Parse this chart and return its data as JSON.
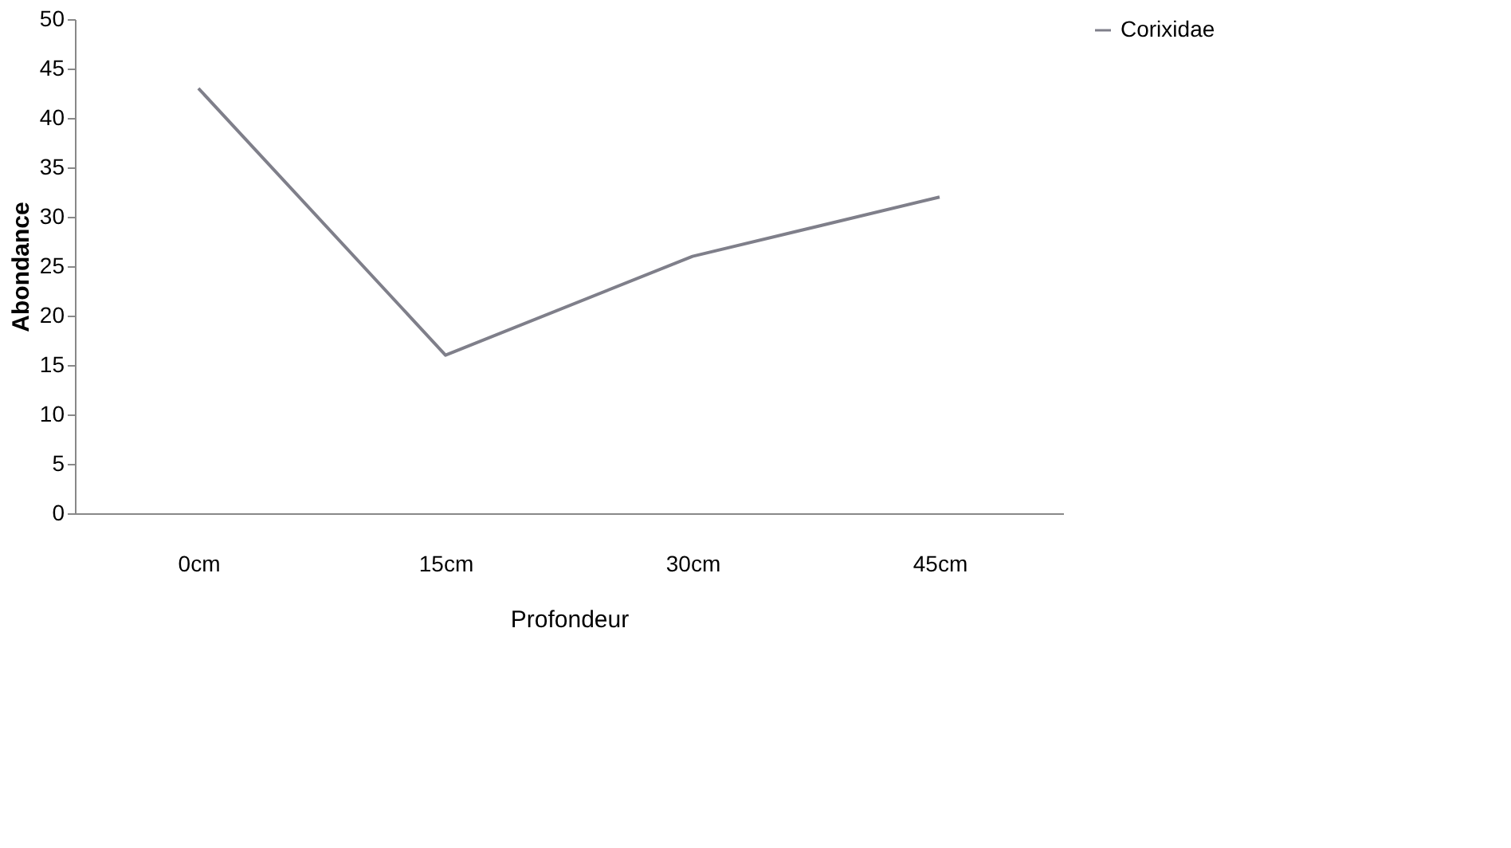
{
  "chart_data": {
    "type": "line",
    "xlabel": "Profondeur",
    "ylabel": "Abondance",
    "categories": [
      "0cm",
      "15cm",
      "30cm",
      "45cm"
    ],
    "series": [
      {
        "name": "Corixidae",
        "color": "#7f7f8a",
        "values": [
          43,
          16,
          26,
          32
        ]
      }
    ],
    "ylim": [
      0,
      50
    ],
    "yticks": [
      0,
      5,
      10,
      15,
      20,
      25,
      30,
      35,
      40,
      45,
      50
    ],
    "grid": false,
    "legend": "right",
    "marker": "none",
    "line_style": "solid"
  }
}
